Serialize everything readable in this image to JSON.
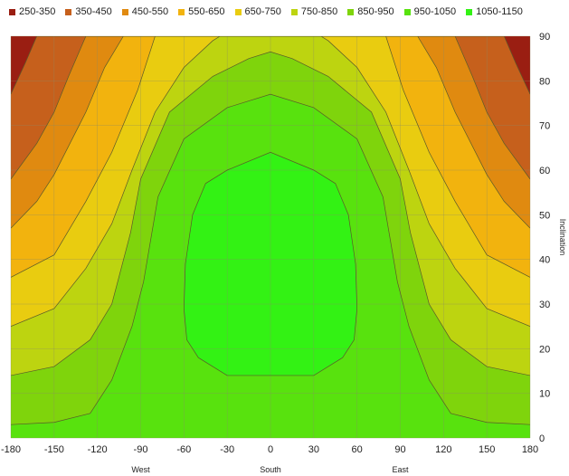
{
  "chart_data": {
    "type": "contour",
    "x_ticks": [
      -180,
      -150,
      -120,
      -90,
      -60,
      -30,
      0,
      30,
      60,
      90,
      120,
      150,
      180
    ],
    "y_ticks": [
      0,
      10,
      20,
      30,
      40,
      50,
      60,
      70,
      80,
      90
    ],
    "xlim": [
      -180,
      180
    ],
    "ylim": [
      0,
      90
    ],
    "ylabel": "Inclination",
    "x_direction_labels": [
      {
        "x": -90,
        "label": "West"
      },
      {
        "x": 0,
        "label": "South"
      },
      {
        "x": 90,
        "label": "East"
      }
    ],
    "grid": true,
    "legend_position": "top",
    "levels": [
      {
        "label": "250-350",
        "min": 250,
        "max": 350,
        "color": "#9a1e12"
      },
      {
        "label": "350-450",
        "min": 350,
        "max": 450,
        "color": "#c6601c"
      },
      {
        "label": "450-550",
        "min": 450,
        "max": 550,
        "color": "#e08a10"
      },
      {
        "label": "550-650",
        "min": 550,
        "max": 650,
        "color": "#f2b30e"
      },
      {
        "label": "650-750",
        "min": 650,
        "max": 750,
        "color": "#e9cc10"
      },
      {
        "label": "750-850",
        "min": 750,
        "max": 850,
        "color": "#bdd410"
      },
      {
        "label": "850-950",
        "min": 850,
        "max": 950,
        "color": "#7fd40c"
      },
      {
        "label": "950-1050",
        "min": 950,
        "max": 1050,
        "color": "#58e20e"
      },
      {
        "label": "1050-1150",
        "min": 1050,
        "max": 1150,
        "color": "#33f214"
      }
    ],
    "boundaries": [
      {
        "value": 350,
        "points": [
          [
            -180,
            77
          ],
          [
            -170,
            84
          ],
          [
            -162,
            90
          ]
        ]
      },
      {
        "value": 450,
        "points": [
          [
            -180,
            58
          ],
          [
            -162,
            66
          ],
          [
            -150,
            73
          ],
          [
            -140,
            81
          ],
          [
            -128,
            90
          ]
        ]
      },
      {
        "value": 550,
        "points": [
          [
            -180,
            47
          ],
          [
            -162,
            53
          ],
          [
            -150,
            59
          ],
          [
            -128,
            73
          ],
          [
            -115,
            83
          ],
          [
            -102,
            90
          ]
        ]
      },
      {
        "value": 650,
        "points": [
          [
            -180,
            36
          ],
          [
            -150,
            41
          ],
          [
            -128,
            53
          ],
          [
            -110,
            64
          ],
          [
            -92,
            78
          ],
          [
            -80,
            90
          ]
        ]
      },
      {
        "value": 750,
        "points": [
          [
            -180,
            25
          ],
          [
            -150,
            29
          ],
          [
            -128,
            38
          ],
          [
            -110,
            48
          ],
          [
            -96,
            60
          ],
          [
            -80,
            73
          ],
          [
            -60,
            83
          ],
          [
            -40,
            89
          ],
          [
            -35,
            90
          ]
        ]
      },
      {
        "value": 850,
        "points": [
          [
            -180,
            14
          ],
          [
            -150,
            16
          ],
          [
            -125,
            22
          ],
          [
            -110,
            30
          ],
          [
            -97,
            46
          ],
          [
            -90,
            58
          ],
          [
            -70,
            73
          ],
          [
            -40,
            81
          ],
          [
            -15,
            85
          ],
          [
            0,
            86.5
          ]
        ]
      },
      {
        "value": 950,
        "points": [
          [
            -180,
            3
          ],
          [
            -150,
            3.5
          ],
          [
            -125,
            5.5
          ],
          [
            -110,
            13
          ],
          [
            -96,
            25
          ],
          [
            -88,
            35
          ],
          [
            -78,
            54
          ],
          [
            -60,
            67
          ],
          [
            -30,
            74
          ],
          [
            0,
            77
          ]
        ]
      },
      {
        "value": 1050,
        "points": [
          [
            -30,
            14
          ],
          [
            -50,
            18
          ],
          [
            -58,
            22
          ],
          [
            -60,
            29
          ],
          [
            -59,
            39
          ],
          [
            -54,
            50
          ],
          [
            -45,
            57
          ],
          [
            -30,
            60
          ],
          [
            0,
            64
          ]
        ]
      }
    ]
  }
}
